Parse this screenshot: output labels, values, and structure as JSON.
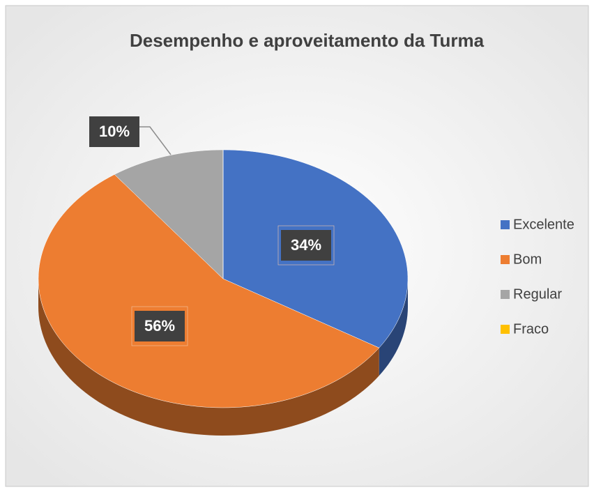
{
  "chart_data": {
    "type": "pie",
    "title": "Desempenho e aproveitamento da Turma",
    "categories": [
      "Excelente",
      "Bom",
      "Regular",
      "Fraco"
    ],
    "values": [
      34,
      56,
      10,
      0
    ],
    "value_labels": [
      "34%",
      "56%",
      "10%",
      null
    ],
    "colors": [
      "#4472c4",
      "#ed7d31",
      "#a5a5a5",
      "#ffc000"
    ],
    "legend": "right"
  }
}
